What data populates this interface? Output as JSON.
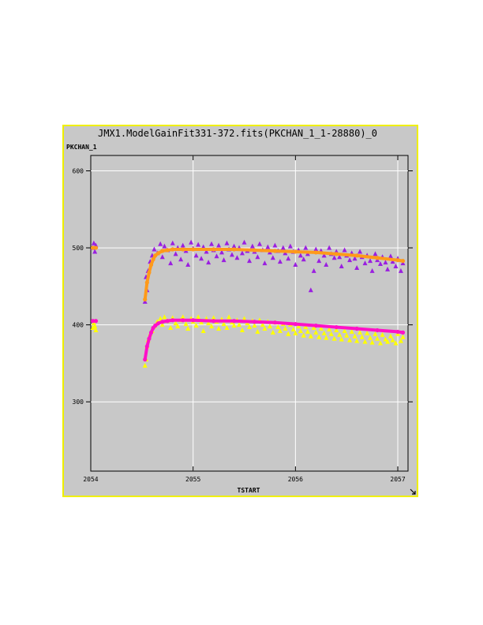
{
  "window": {
    "title": "JMX1.ModelGainFit331-372.fits(PKCHAN_1_1-28880)_0",
    "resize_icon": "resize-corner-icon"
  },
  "colors": {
    "frame_border": "#f0f000",
    "plot_bg": "#c8c8c8",
    "grid": "#ffffff",
    "upper_data": "#9a1fe0",
    "upper_fit": "#ff9a1a",
    "lower_data": "#ffff00",
    "lower_fit": "#ff10c8"
  },
  "chart_data": {
    "type": "scatter",
    "title": "JMX1.ModelGainFit331-372.fits(PKCHAN_1_1-28880)_0",
    "xlabel": "TSTART",
    "ylabel": "PKCHAN_1",
    "xlim": [
      2054,
      2057.1
    ],
    "ylim": [
      210,
      620
    ],
    "x_ticks": [
      2054,
      2055,
      2056,
      2057
    ],
    "x_tick_labels": [
      "2054",
      "2055",
      "2056",
      "2057"
    ],
    "y_ticks": [
      300,
      400,
      500,
      600
    ],
    "y_tick_labels": [
      "300",
      "400",
      "500",
      "600"
    ],
    "grid": true,
    "series": [
      {
        "marker": "triangle",
        "color": "#9a1fe0",
        "x": [
          2054.02,
          2054.03,
          2054.04,
          2054.05,
          2054.53,
          2054.54,
          2054.55,
          2054.56,
          2054.58,
          2054.6,
          2054.62,
          2054.65,
          2054.68,
          2054.7,
          2054.72,
          2054.75,
          2054.78,
          2054.8,
          2054.83,
          2054.85,
          2054.88,
          2054.9,
          2054.93,
          2054.95,
          2054.98,
          2055.0,
          2055.03,
          2055.05,
          2055.08,
          2055.1,
          2055.13,
          2055.15,
          2055.18,
          2055.2,
          2055.23,
          2055.25,
          2055.28,
          2055.3,
          2055.33,
          2055.35,
          2055.38,
          2055.4,
          2055.43,
          2055.45,
          2055.48,
          2055.5,
          2055.53,
          2055.55,
          2055.58,
          2055.6,
          2055.63,
          2055.65,
          2055.68,
          2055.7,
          2055.73,
          2055.75,
          2055.78,
          2055.8,
          2055.83,
          2055.85,
          2055.88,
          2055.9,
          2055.93,
          2055.95,
          2055.98,
          2056.0,
          2056.03,
          2056.05,
          2056.08,
          2056.1,
          2056.12,
          2056.15,
          2056.18,
          2056.2,
          2056.23,
          2056.25,
          2056.28,
          2056.3,
          2056.33,
          2056.35,
          2056.38,
          2056.4,
          2056.43,
          2056.45,
          2056.48,
          2056.5,
          2056.53,
          2056.55,
          2056.58,
          2056.6,
          2056.63,
          2056.65,
          2056.68,
          2056.7,
          2056.73,
          2056.75,
          2056.78,
          2056.8,
          2056.83,
          2056.85,
          2056.88,
          2056.9,
          2056.93,
          2056.95,
          2056.98,
          2057.0,
          2057.03,
          2057.05
        ],
        "y": [
          500,
          506,
          495,
          503,
          430,
          462,
          445,
          470,
          482,
          490,
          498,
          493,
          505,
          488,
          502,
          497,
          480,
          506,
          492,
          500,
          485,
          503,
          496,
          478,
          507,
          499,
          490,
          504,
          486,
          501,
          495,
          481,
          505,
          497,
          489,
          503,
          494,
          484,
          506,
          498,
          491,
          502,
          487,
          500,
          493,
          507,
          496,
          483,
          502,
          495,
          488,
          505,
          497,
          480,
          501,
          494,
          487,
          503,
          496,
          482,
          500,
          493,
          486,
          502,
          495,
          478,
          497,
          490,
          485,
          500,
          492,
          445,
          470,
          498,
          483,
          496,
          490,
          478,
          500,
          492,
          487,
          495,
          488,
          476,
          497,
          490,
          484,
          493,
          486,
          474,
          495,
          488,
          480,
          490,
          483,
          470,
          492,
          484,
          479,
          488,
          481,
          472,
          489,
          482,
          476,
          486,
          470,
          480
        ]
      },
      {
        "marker": "dot",
        "color": "#ff9a1a",
        "x": [
          2054.02,
          2054.05,
          2054.53,
          2054.55,
          2054.57,
          2054.59,
          2054.61,
          2054.63,
          2054.66,
          2054.7,
          2054.75,
          2054.8,
          2054.9,
          2055.0,
          2055.2,
          2055.4,
          2055.6,
          2055.8,
          2056.0,
          2056.2,
          2056.4,
          2056.6,
          2056.8,
          2057.0,
          2057.05
        ],
        "y": [
          500,
          500,
          433,
          455,
          468,
          478,
          485,
          490,
          493,
          496,
          497,
          498,
          498,
          498,
          498,
          498,
          497,
          496,
          495,
          494,
          492,
          490,
          487,
          484,
          483
        ]
      },
      {
        "marker": "triangle",
        "color": "#ffff00",
        "x": [
          2054.02,
          2054.03,
          2054.04,
          2054.05,
          2054.53,
          2054.54,
          2054.55,
          2054.56,
          2054.58,
          2054.6,
          2054.62,
          2054.65,
          2054.68,
          2054.7,
          2054.72,
          2054.75,
          2054.78,
          2054.8,
          2054.83,
          2054.85,
          2054.88,
          2054.9,
          2054.93,
          2054.95,
          2054.98,
          2055.0,
          2055.03,
          2055.05,
          2055.08,
          2055.1,
          2055.13,
          2055.15,
          2055.18,
          2055.2,
          2055.23,
          2055.25,
          2055.28,
          2055.3,
          2055.33,
          2055.35,
          2055.38,
          2055.4,
          2055.43,
          2055.45,
          2055.48,
          2055.5,
          2055.53,
          2055.55,
          2055.58,
          2055.6,
          2055.63,
          2055.65,
          2055.68,
          2055.7,
          2055.73,
          2055.75,
          2055.78,
          2055.8,
          2055.83,
          2055.85,
          2055.88,
          2055.9,
          2055.93,
          2055.95,
          2055.98,
          2056.0,
          2056.03,
          2056.05,
          2056.08,
          2056.1,
          2056.12,
          2056.15,
          2056.18,
          2056.2,
          2056.23,
          2056.25,
          2056.28,
          2056.3,
          2056.33,
          2056.35,
          2056.38,
          2056.4,
          2056.43,
          2056.45,
          2056.48,
          2056.5,
          2056.53,
          2056.55,
          2056.58,
          2056.6,
          2056.63,
          2056.65,
          2056.68,
          2056.7,
          2056.73,
          2056.75,
          2056.78,
          2056.8,
          2056.83,
          2056.85,
          2056.88,
          2056.9,
          2056.93,
          2056.95,
          2056.98,
          2057.0,
          2057.03,
          2057.05
        ],
        "y": [
          396,
          402,
          398,
          393,
          347,
          355,
          372,
          380,
          388,
          392,
          398,
          404,
          408,
          400,
          410,
          405,
          396,
          409,
          402,
          398,
          406,
          410,
          401,
          395,
          408,
          404,
          399,
          410,
          403,
          392,
          408,
          402,
          398,
          409,
          404,
          395,
          407,
          401,
          396,
          410,
          403,
          399,
          406,
          400,
          393,
          408,
          402,
          397,
          405,
          399,
          391,
          406,
          400,
          395,
          404,
          398,
          390,
          403,
          397,
          392,
          401,
          395,
          388,
          400,
          394,
          389,
          398,
          392,
          386,
          397,
          391,
          385,
          396,
          390,
          384,
          395,
          389,
          383,
          394,
          388,
          382,
          393,
          387,
          381,
          392,
          386,
          380,
          391,
          385,
          379,
          390,
          384,
          378,
          389,
          383,
          377,
          388,
          382,
          376,
          387,
          381,
          378,
          385,
          380,
          376,
          388,
          379,
          384
        ]
      },
      {
        "marker": "dot",
        "color": "#ff10c8",
        "x": [
          2054.02,
          2054.05,
          2054.53,
          2054.55,
          2054.57,
          2054.59,
          2054.61,
          2054.63,
          2054.66,
          2054.7,
          2054.75,
          2054.8,
          2054.9,
          2055.0,
          2055.2,
          2055.4,
          2055.6,
          2055.8,
          2056.0,
          2056.2,
          2056.4,
          2056.6,
          2056.8,
          2057.0,
          2057.05
        ],
        "y": [
          405,
          405,
          355,
          372,
          382,
          390,
          396,
          399,
          402,
          404,
          405,
          406,
          406,
          406,
          405,
          405,
          404,
          403,
          401,
          399,
          397,
          395,
          393,
          391,
          390
        ]
      }
    ]
  }
}
